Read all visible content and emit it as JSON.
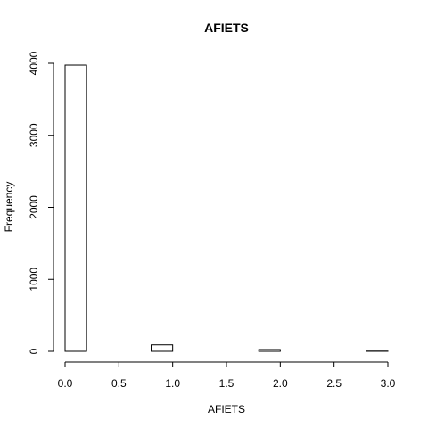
{
  "chart_data": {
    "type": "bar",
    "title": "AFIETS",
    "xlabel": "AFIETS",
    "ylabel": "Frequency",
    "bins": [
      {
        "start": 0.0,
        "end": 0.2,
        "value": 3975
      },
      {
        "start": 0.2,
        "end": 0.4,
        "value": 0
      },
      {
        "start": 0.4,
        "end": 0.6,
        "value": 0
      },
      {
        "start": 0.6,
        "end": 0.8,
        "value": 0
      },
      {
        "start": 0.8,
        "end": 1.0,
        "value": 90
      },
      {
        "start": 1.0,
        "end": 1.2,
        "value": 0
      },
      {
        "start": 1.2,
        "end": 1.4,
        "value": 0
      },
      {
        "start": 1.4,
        "end": 1.6,
        "value": 0
      },
      {
        "start": 1.6,
        "end": 1.8,
        "value": 0
      },
      {
        "start": 1.8,
        "end": 2.0,
        "value": 25
      },
      {
        "start": 2.0,
        "end": 2.2,
        "value": 0
      },
      {
        "start": 2.2,
        "end": 2.4,
        "value": 0
      },
      {
        "start": 2.4,
        "end": 2.6,
        "value": 0
      },
      {
        "start": 2.6,
        "end": 2.8,
        "value": 0
      },
      {
        "start": 2.8,
        "end": 3.0,
        "value": 3
      }
    ],
    "xlim": [
      0,
      3
    ],
    "ylim": [
      0,
      4000
    ],
    "xticks": [
      {
        "value": 0.0,
        "label": "0.0"
      },
      {
        "value": 0.5,
        "label": "0.5"
      },
      {
        "value": 1.0,
        "label": "1.0"
      },
      {
        "value": 1.5,
        "label": "1.5"
      },
      {
        "value": 2.0,
        "label": "2.0"
      },
      {
        "value": 2.5,
        "label": "2.5"
      },
      {
        "value": 3.0,
        "label": "3.0"
      }
    ],
    "yticks": [
      {
        "value": 0,
        "label": "0"
      },
      {
        "value": 1000,
        "label": "1000"
      },
      {
        "value": 2000,
        "label": "2000"
      },
      {
        "value": 3000,
        "label": "3000"
      },
      {
        "value": 4000,
        "label": "4000"
      }
    ],
    "grid": false
  }
}
